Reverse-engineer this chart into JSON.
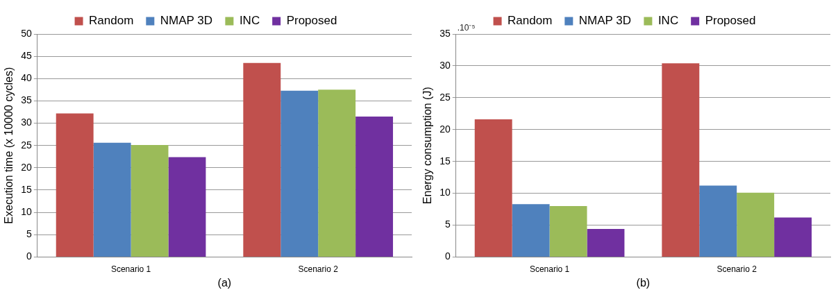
{
  "chart_data": [
    {
      "type": "bar",
      "categories": [
        "Scenario 1",
        "Scenario 2"
      ],
      "xlabel": "(a)",
      "ylabel": "Execution time (x 10000 cycles)",
      "ylim": [
        0,
        50
      ],
      "yticks": [
        0,
        5,
        10,
        15,
        20,
        25,
        30,
        35,
        40,
        45,
        50
      ],
      "grid": "y",
      "legend": "top",
      "series": [
        {
          "name": "Random",
          "color": "#c0504d",
          "values": [
            32.2,
            43.5
          ]
        },
        {
          "name": "NMAP 3D",
          "color": "#4f81bd",
          "values": [
            25.6,
            37.3
          ]
        },
        {
          "name": "INC",
          "color": "#9bbb59",
          "values": [
            25.1,
            37.5
          ]
        },
        {
          "name": "Proposed",
          "color": "#7030a0",
          "values": [
            22.4,
            31.5
          ]
        }
      ]
    },
    {
      "type": "bar",
      "categories": [
        "Scenario 1",
        "Scenario 2"
      ],
      "xlabel": "(b)",
      "ylabel": "Energy consumption (J)",
      "annotations": [
        ".10⁻⁵"
      ],
      "ylim": [
        0,
        35
      ],
      "yticks": [
        0,
        5,
        10,
        15,
        20,
        25,
        30,
        35
      ],
      "grid": "y",
      "legend": "top",
      "series": [
        {
          "name": "Random",
          "color": "#c0504d",
          "values": [
            21.6,
            30.4
          ]
        },
        {
          "name": "NMAP 3D",
          "color": "#4f81bd",
          "values": [
            8.3,
            11.2
          ]
        },
        {
          "name": "INC",
          "color": "#9bbb59",
          "values": [
            8.0,
            10.1
          ]
        },
        {
          "name": "Proposed",
          "color": "#7030a0",
          "values": [
            4.4,
            6.2
          ]
        }
      ]
    }
  ]
}
